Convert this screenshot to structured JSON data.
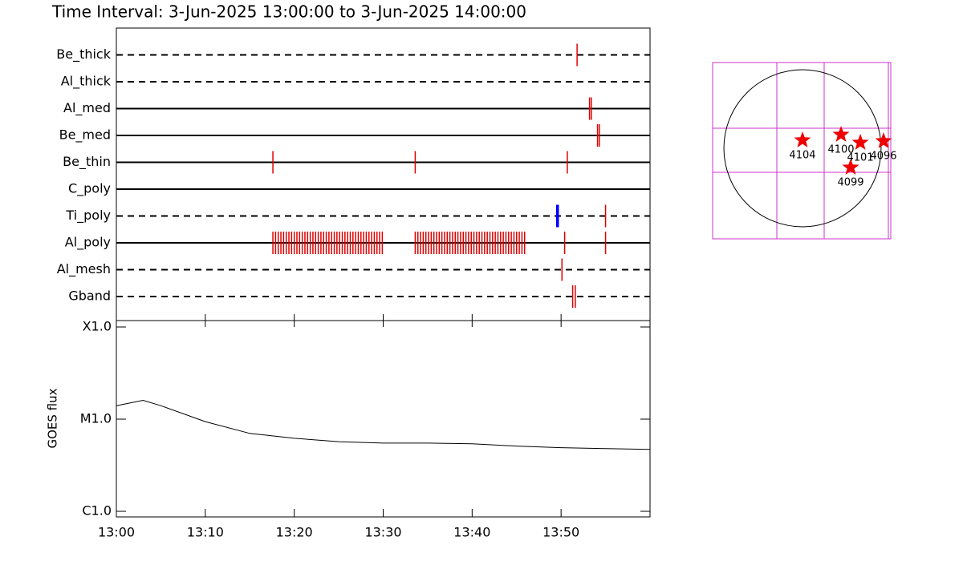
{
  "chart_data": {
    "type": "timeline",
    "title": "Time Interval:  3-Jun-2025 13:00:00 to  3-Jun-2025 14:00:00",
    "xlim": [
      0,
      60
    ],
    "xticks": [
      {
        "value": 0,
        "label": "13:00"
      },
      {
        "value": 10,
        "label": "13:10"
      },
      {
        "value": 20,
        "label": "13:20"
      },
      {
        "value": 30,
        "label": "13:30"
      },
      {
        "value": 40,
        "label": "13:40"
      },
      {
        "value": 50,
        "label": "13:50"
      }
    ],
    "mark_color": "#e00000",
    "highlight_color": "#0000ff",
    "rows": [
      {
        "name": "Be_thick",
        "dashed": true,
        "times": [
          51.8
        ]
      },
      {
        "name": "Al_thick",
        "dashed": true,
        "times": []
      },
      {
        "name": "Al_med",
        "dashed": false,
        "times": [
          53.2,
          53.4
        ]
      },
      {
        "name": "Be_med",
        "dashed": false,
        "times": [
          54.1,
          54.3
        ]
      },
      {
        "name": "Be_thin",
        "dashed": false,
        "times": [
          17.6,
          33.6,
          50.7
        ]
      },
      {
        "name": "C_poly",
        "dashed": false,
        "times": []
      },
      {
        "name": "Ti_poly",
        "dashed": true,
        "times": [
          55.0
        ],
        "times_highlight": [
          49.6
        ]
      },
      {
        "name": "Al_poly",
        "dashed": false,
        "times": [
          17.6,
          17.9,
          18.2,
          18.5,
          18.8,
          19.1,
          19.4,
          19.7,
          20.0,
          20.3,
          20.6,
          20.9,
          21.2,
          21.5,
          21.8,
          22.1,
          22.4,
          22.7,
          23.0,
          23.3,
          23.6,
          23.9,
          24.2,
          24.5,
          24.8,
          25.1,
          25.4,
          25.7,
          26.0,
          26.3,
          26.6,
          26.9,
          27.2,
          27.5,
          27.8,
          28.1,
          28.4,
          28.7,
          29.0,
          29.3,
          29.6,
          29.9,
          33.6,
          33.9,
          34.2,
          34.5,
          34.8,
          35.1,
          35.4,
          35.7,
          36.0,
          36.3,
          36.6,
          36.9,
          37.2,
          37.5,
          37.8,
          38.1,
          38.4,
          38.7,
          39.0,
          39.3,
          39.6,
          39.9,
          40.2,
          40.5,
          40.8,
          41.1,
          41.4,
          41.7,
          42.0,
          42.3,
          42.6,
          42.9,
          43.2,
          43.5,
          43.8,
          44.1,
          44.4,
          44.7,
          45.0,
          45.3,
          45.6,
          45.9,
          50.4,
          55.0
        ]
      },
      {
        "name": "Al_mesh",
        "dashed": true,
        "times": [
          50.1
        ]
      },
      {
        "name": "Gband",
        "dashed": true,
        "times": [
          51.3,
          51.6
        ]
      }
    ],
    "goes": {
      "ylabel": "GOES flux",
      "log_scale": true,
      "ylim": [
        1e-06,
        0.0001
      ],
      "yticks": [
        {
          "value": 0.0001,
          "label": "X1.0"
        },
        {
          "value": 1e-05,
          "label": "M1.0"
        },
        {
          "value": 1e-06,
          "label": "C1.0"
        }
      ],
      "x": [
        0,
        3,
        5,
        10,
        15,
        20,
        25,
        30,
        35,
        40,
        45,
        50,
        55,
        60
      ],
      "values": [
        1.4e-05,
        1.6e-05,
        1.4e-05,
        9.4e-06,
        7e-06,
        6.2e-06,
        5.7e-06,
        5.5e-06,
        5.5e-06,
        5.4e-06,
        5.1e-06,
        4.9e-06,
        4.8e-06,
        4.7e-06
      ]
    },
    "map": {
      "xlim": [
        -1086,
        1067
      ],
      "ylim": [
        -1096,
        1038
      ],
      "solar_radius": 950,
      "regions": [
        {
          "label": "4104",
          "x": 0,
          "y": 97
        },
        {
          "label": "4100",
          "x": 466,
          "y": 165
        },
        {
          "label": "4101",
          "x": 699,
          "y": 68
        },
        {
          "label": "4096",
          "x": 980,
          "y": 87
        },
        {
          "label": "4099",
          "x": 582,
          "y": -233
        }
      ]
    }
  }
}
